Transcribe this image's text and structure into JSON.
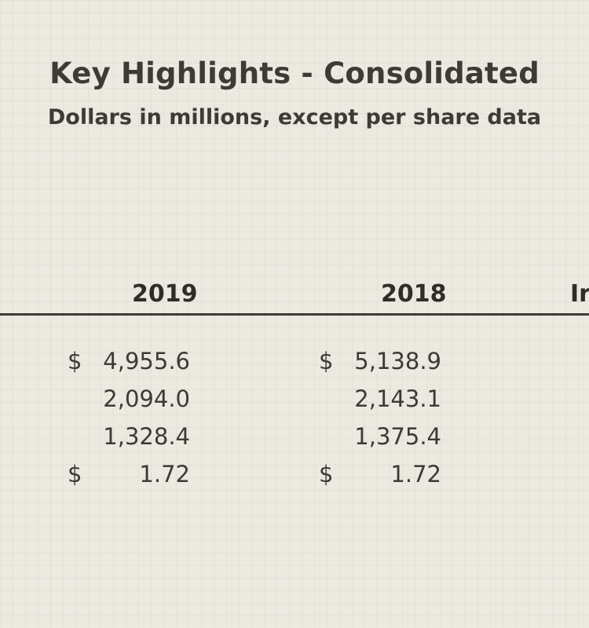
{
  "header": {
    "title": "Key Highlights - Consolidated",
    "subtitle": "Dollars in millions, except per share data"
  },
  "table": {
    "columns": [
      "2019",
      "2018",
      "Ir"
    ],
    "rows": [
      {
        "col_2019": {
          "currency": "$",
          "value": "4,955.6"
        },
        "col_2018": {
          "currency": "$",
          "value": "5,138.9"
        }
      },
      {
        "col_2019": {
          "currency": "",
          "value": "2,094.0"
        },
        "col_2018": {
          "currency": "",
          "value": "2,143.1"
        }
      },
      {
        "col_2019": {
          "currency": "",
          "value": "1,328.4"
        },
        "col_2018": {
          "currency": "",
          "value": "1,375.4"
        }
      },
      {
        "col_2019": {
          "currency": "$",
          "value": "1.72"
        },
        "col_2018": {
          "currency": "$",
          "value": "1.72"
        }
      }
    ]
  }
}
